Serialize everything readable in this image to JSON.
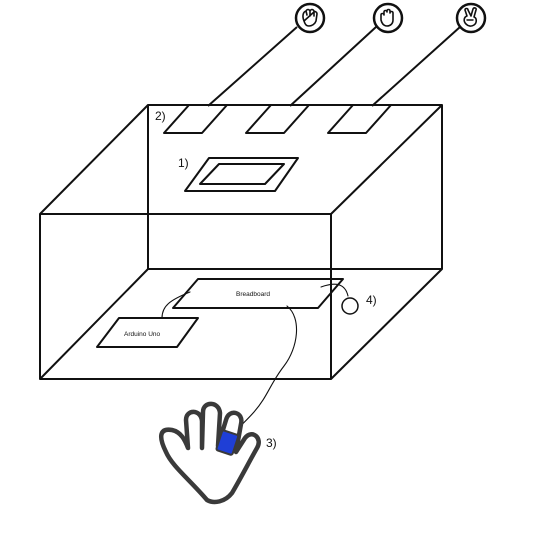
{
  "labels": {
    "screen": "1)",
    "buttons": "2)",
    "glove": "3)",
    "button": "4)",
    "breadboard": "Breadboard",
    "arduino": "Arduino Uno"
  },
  "gesture_icons": [
    "rock-hand-icon",
    "paper-hand-icon",
    "scissors-hand-icon"
  ],
  "colors": {
    "stroke": "#111111",
    "glove_stroke": "#3a3a3a",
    "sensor": "#1f3fd6",
    "background": "#ffffff"
  }
}
